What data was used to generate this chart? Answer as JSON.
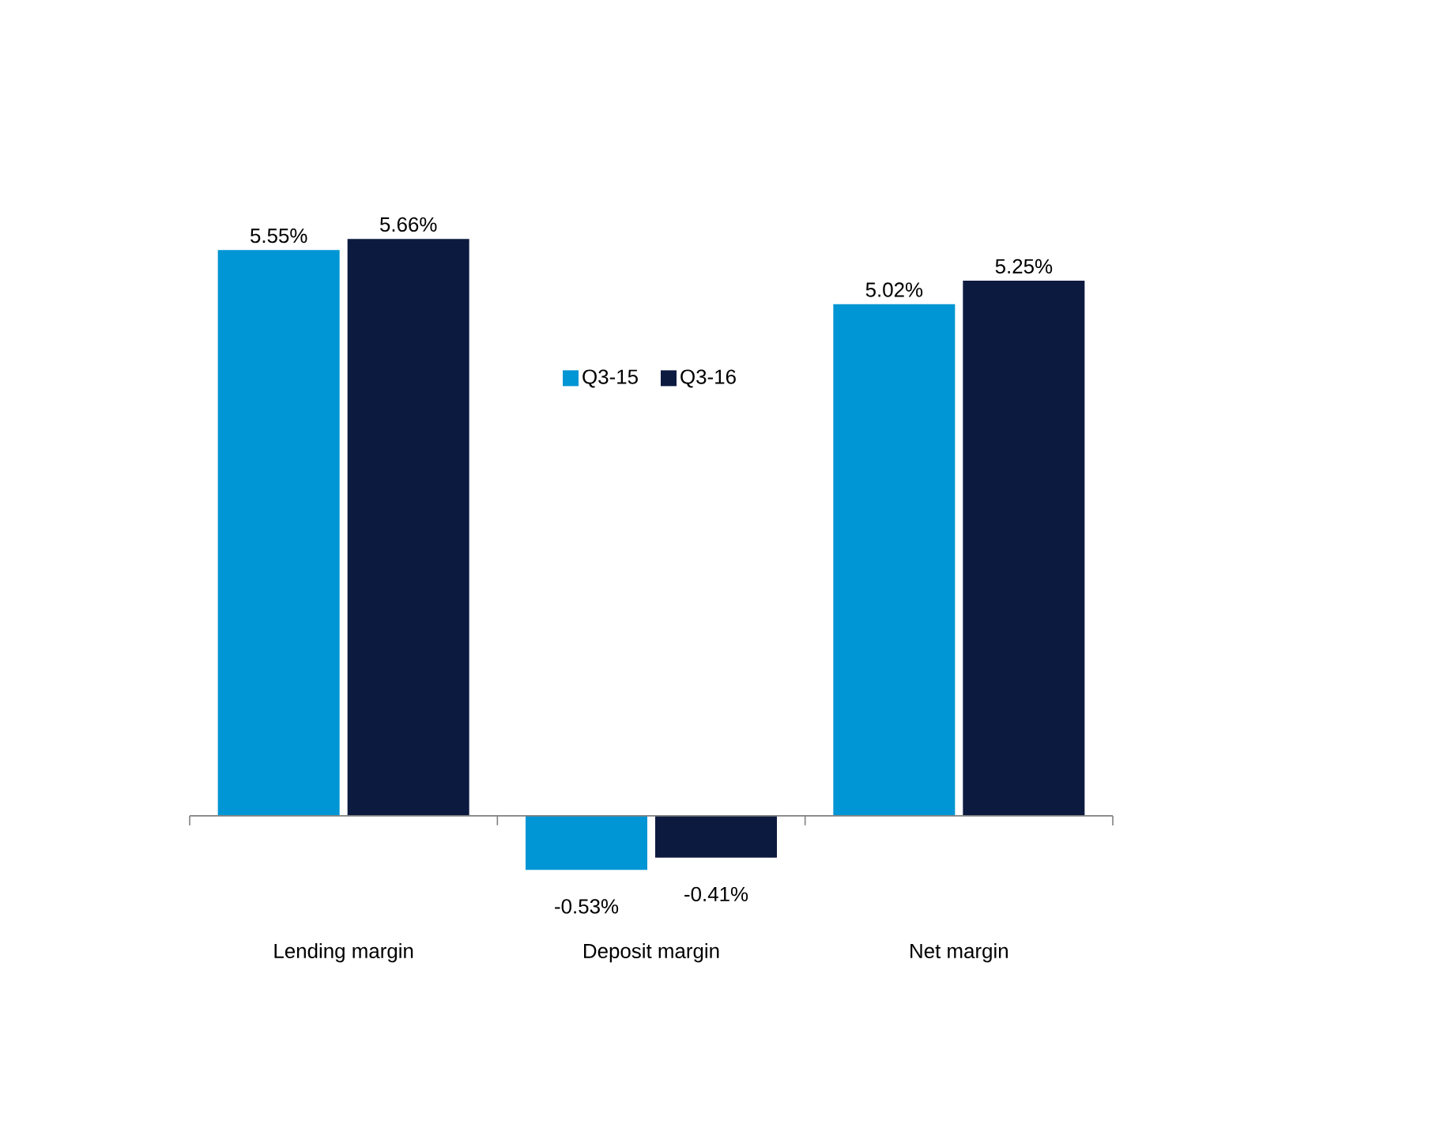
{
  "chart_data": {
    "type": "bar",
    "categories": [
      "Lending margin",
      "Deposit margin",
      "Net margin"
    ],
    "series": [
      {
        "name": "Q3-15",
        "color": "#0095d4",
        "values": [
          5.55,
          -0.53,
          5.02
        ],
        "value_labels": [
          "5.55%",
          "-0.53%",
          "5.02%"
        ]
      },
      {
        "name": "Q3-16",
        "color": "#0d1a40",
        "values": [
          5.66,
          -0.41,
          5.25
        ],
        "value_labels": [
          "5.66%",
          "-0.41%",
          "5.25%"
        ]
      }
    ],
    "legend": "top"
  }
}
